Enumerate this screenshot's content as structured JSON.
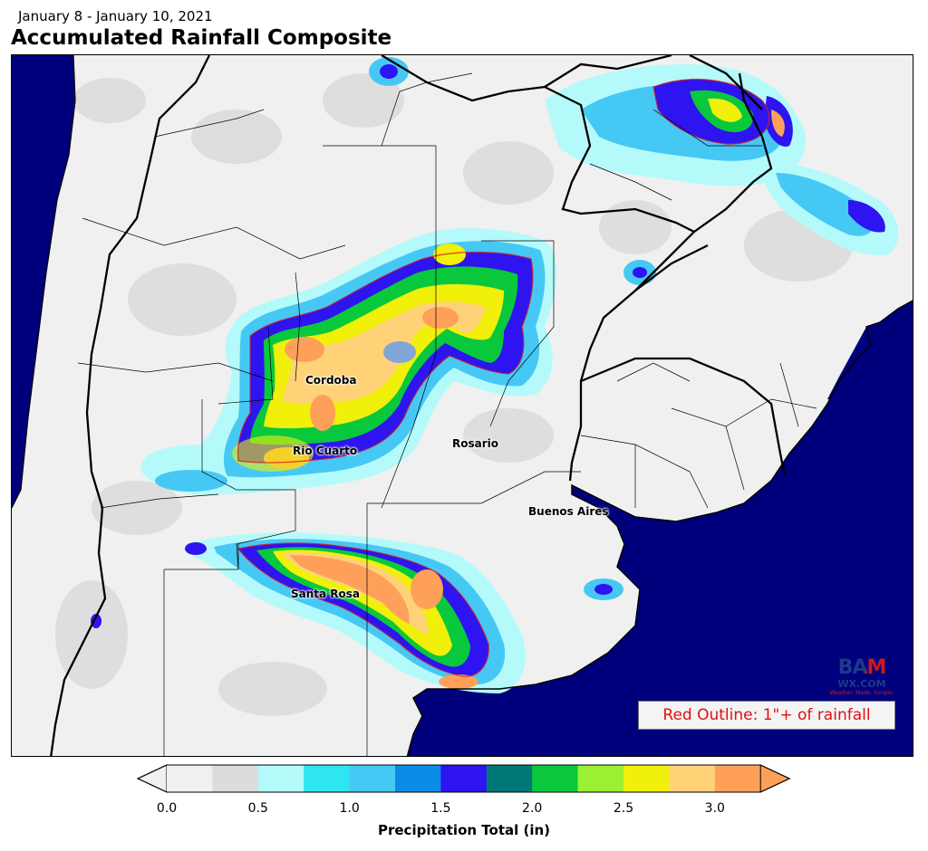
{
  "header": {
    "date_range": "January 8 - January 10, 2021",
    "title": "Accumulated Rainfall Composite"
  },
  "cities": [
    {
      "name": "Cordoba",
      "key": "cordoba"
    },
    {
      "name": "Rio Cuarto",
      "key": "rio-cuarto"
    },
    {
      "name": "Rosario",
      "key": "rosario"
    },
    {
      "name": "Buenos Aires",
      "key": "buenos-aires"
    },
    {
      "name": "Santa Rosa",
      "key": "santa-rosa"
    }
  ],
  "note": "Red Outline: 1\"+ of rainfall",
  "logo": {
    "top": "BAM",
    "middle": "WX.COM",
    "tagline": "Weather. Made. Simple."
  },
  "colorbar": {
    "label": "Precipitation Total (in)",
    "ticks": [
      "0.0",
      "0.5",
      "1.0",
      "1.5",
      "2.0",
      "2.5",
      "3.0"
    ],
    "colors": [
      "#f0f0f0",
      "#dcdcdc",
      "#b4fafa",
      "#2ee6f0",
      "#46c8f5",
      "#0a8ce6",
      "#2d14f0",
      "#00787a",
      "#0ac83c",
      "#9bf032",
      "#f0f00a",
      "#ffd278",
      "#ffa05a"
    ]
  },
  "colors": {
    "ocean": "#00007c",
    "land": "#f0f0f0",
    "border": "#000000"
  }
}
